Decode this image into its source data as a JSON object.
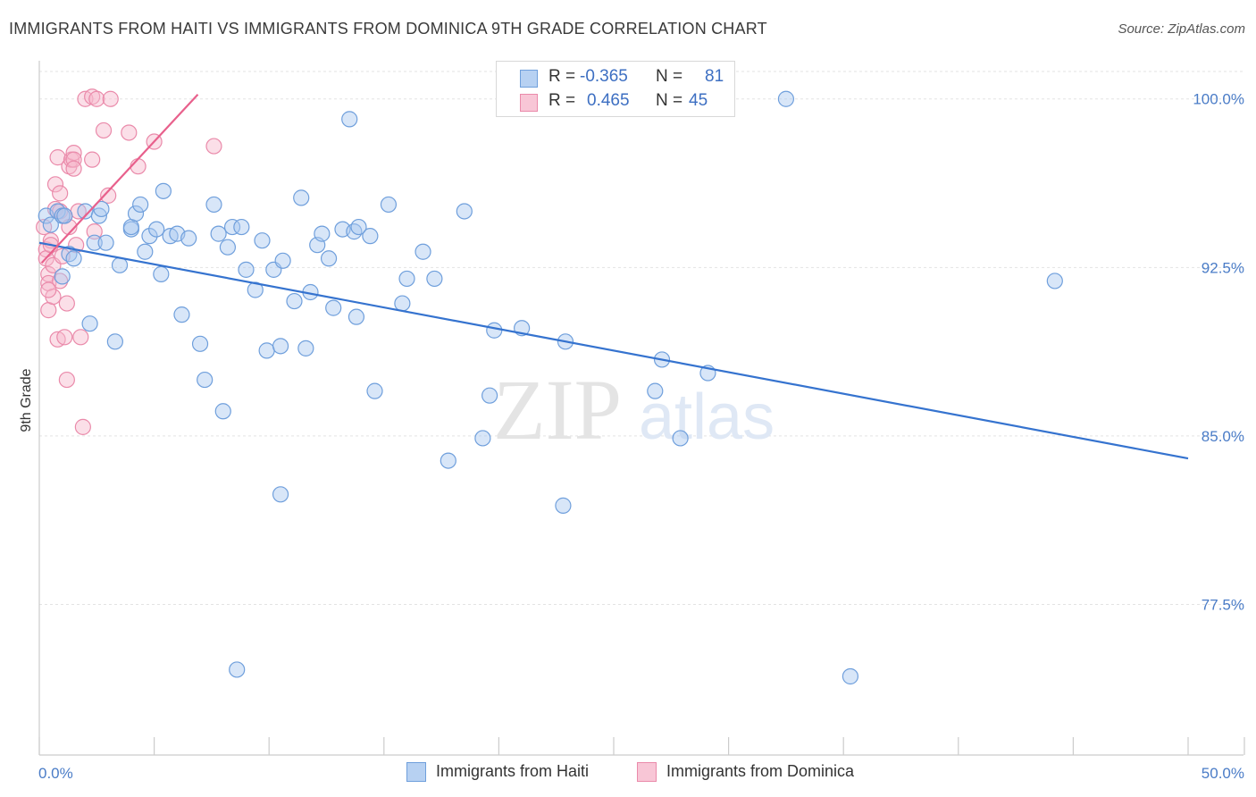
{
  "title": "IMMIGRANTS FROM HAITI VS IMMIGRANTS FROM DOMINICA 9TH GRADE CORRELATION CHART",
  "source": "Source: ZipAtlas.com",
  "watermark": {
    "zip": "ZIP",
    "atlas": "atlas"
  },
  "legend": {
    "rows": [
      {
        "r_label": "R =",
        "r_value": "-0.365",
        "n_label": "N =",
        "n_value": "81"
      },
      {
        "r_label": "R =",
        "r_value": "0.465",
        "n_label": "N =",
        "n_value": "45"
      }
    ]
  },
  "bottom_legend": {
    "haiti": "Immigrants from Haiti",
    "dominica": "Immigrants from Dominica"
  },
  "colors": {
    "haiti_fill": "#a9c8ef",
    "haiti_stroke": "#6f9fdc",
    "haiti_line": "#3573cf",
    "dominica_fill": "#f6b9cc",
    "dominica_stroke": "#ea8aaa",
    "dominica_line": "#e8608c",
    "grid": "#e3e3e3",
    "axis": "#cccccc",
    "tick_text": "#4a7cc7"
  },
  "chart_data": {
    "type": "scatter",
    "title": "IMMIGRANTS FROM HAITI VS IMMIGRANTS FROM DOMINICA 9TH GRADE CORRELATION CHART",
    "xlabel": "",
    "ylabel": "9th Grade",
    "xlim": [
      0,
      50
    ],
    "ylim": [
      70.8,
      101.7
    ],
    "x_tick_labels": [
      {
        "value": 0,
        "label": "0.0%"
      },
      {
        "value": 50,
        "label": "50.0%"
      }
    ],
    "y_ticks": [
      {
        "value": 100.0,
        "label": "100.0%"
      },
      {
        "value": 92.5,
        "label": "92.5%"
      },
      {
        "value": 85.0,
        "label": "85.0%"
      },
      {
        "value": 77.5,
        "label": "77.5%"
      }
    ],
    "series": [
      {
        "name": "Immigrants from Haiti",
        "R": -0.365,
        "N": 81,
        "trend": {
          "x": [
            0,
            50
          ],
          "y": [
            93.6,
            84.0
          ]
        },
        "points": [
          [
            0.3,
            94.8
          ],
          [
            0.5,
            94.4
          ],
          [
            0.8,
            95.0
          ],
          [
            1.0,
            94.8
          ],
          [
            1.1,
            94.8
          ],
          [
            1.0,
            92.1
          ],
          [
            1.3,
            93.1
          ],
          [
            1.5,
            92.9
          ],
          [
            2.0,
            95.0
          ],
          [
            2.6,
            94.8
          ],
          [
            2.7,
            95.1
          ],
          [
            2.2,
            90.0
          ],
          [
            2.4,
            93.6
          ],
          [
            2.9,
            93.6
          ],
          [
            3.3,
            89.2
          ],
          [
            3.5,
            92.6
          ],
          [
            4.0,
            94.2
          ],
          [
            4.0,
            94.3
          ],
          [
            4.2,
            94.9
          ],
          [
            4.4,
            95.3
          ],
          [
            4.6,
            93.2
          ],
          [
            4.8,
            93.9
          ],
          [
            5.1,
            94.2
          ],
          [
            5.3,
            92.2
          ],
          [
            5.4,
            95.9
          ],
          [
            5.7,
            93.9
          ],
          [
            6.0,
            94.0
          ],
          [
            6.2,
            90.4
          ],
          [
            6.5,
            93.8
          ],
          [
            7.0,
            89.1
          ],
          [
            7.2,
            87.5
          ],
          [
            7.6,
            95.3
          ],
          [
            7.8,
            94.0
          ],
          [
            8.0,
            86.1
          ],
          [
            8.2,
            93.4
          ],
          [
            8.4,
            94.3
          ],
          [
            8.8,
            94.3
          ],
          [
            9.0,
            92.4
          ],
          [
            9.4,
            91.5
          ],
          [
            9.7,
            93.7
          ],
          [
            9.9,
            88.8
          ],
          [
            10.2,
            92.4
          ],
          [
            10.6,
            92.8
          ],
          [
            10.5,
            82.4
          ],
          [
            11.1,
            91.0
          ],
          [
            11.4,
            95.6
          ],
          [
            11.6,
            88.9
          ],
          [
            11.8,
            91.4
          ],
          [
            12.1,
            93.5
          ],
          [
            12.3,
            94.0
          ],
          [
            12.6,
            92.9
          ],
          [
            12.8,
            90.7
          ],
          [
            13.2,
            94.2
          ],
          [
            13.7,
            94.1
          ],
          [
            13.5,
            99.1
          ],
          [
            13.8,
            90.3
          ],
          [
            13.9,
            94.3
          ],
          [
            14.4,
            93.9
          ],
          [
            14.6,
            87.0
          ],
          [
            15.2,
            95.3
          ],
          [
            15.8,
            90.9
          ],
          [
            16.0,
            92.0
          ],
          [
            16.7,
            93.2
          ],
          [
            17.2,
            92.0
          ],
          [
            17.8,
            83.9
          ],
          [
            18.5,
            95.0
          ],
          [
            19.3,
            84.9
          ],
          [
            19.6,
            86.8
          ],
          [
            19.8,
            89.7
          ],
          [
            21.0,
            89.8
          ],
          [
            22.8,
            81.9
          ],
          [
            22.9,
            89.2
          ],
          [
            26.8,
            87.0
          ],
          [
            27.1,
            88.4
          ],
          [
            27.9,
            84.9
          ],
          [
            29.1,
            87.8
          ],
          [
            8.6,
            74.6
          ],
          [
            32.5,
            100.0
          ],
          [
            35.3,
            74.3
          ],
          [
            44.2,
            91.9
          ],
          [
            10.5,
            89.0
          ]
        ]
      },
      {
        "name": "Immigrants from Dominica",
        "R": 0.465,
        "N": 45,
        "trend": {
          "x": [
            0.1,
            6.9
          ],
          "y": [
            92.7,
            100.2
          ]
        },
        "points": [
          [
            0.2,
            94.3
          ],
          [
            0.3,
            93.3
          ],
          [
            0.3,
            92.9
          ],
          [
            0.4,
            92.2
          ],
          [
            0.4,
            91.8
          ],
          [
            0.4,
            90.6
          ],
          [
            0.5,
            93.7
          ],
          [
            0.5,
            93.5
          ],
          [
            0.6,
            92.6
          ],
          [
            0.6,
            91.2
          ],
          [
            0.7,
            96.2
          ],
          [
            0.7,
            95.1
          ],
          [
            0.8,
            97.4
          ],
          [
            0.8,
            89.3
          ],
          [
            0.9,
            95.8
          ],
          [
            0.9,
            95.0
          ],
          [
            0.9,
            91.9
          ],
          [
            1.0,
            93.0
          ],
          [
            1.1,
            94.8
          ],
          [
            1.1,
            89.4
          ],
          [
            1.2,
            90.9
          ],
          [
            1.2,
            87.5
          ],
          [
            1.3,
            97.0
          ],
          [
            1.3,
            94.3
          ],
          [
            1.4,
            97.3
          ],
          [
            1.5,
            97.6
          ],
          [
            1.5,
            97.3
          ],
          [
            1.5,
            96.9
          ],
          [
            1.6,
            93.5
          ],
          [
            1.7,
            95.0
          ],
          [
            1.8,
            89.4
          ],
          [
            1.9,
            85.4
          ],
          [
            2.0,
            100.0
          ],
          [
            2.3,
            100.1
          ],
          [
            2.4,
            94.1
          ],
          [
            2.3,
            97.3
          ],
          [
            2.5,
            100.0
          ],
          [
            2.8,
            98.6
          ],
          [
            3.0,
            95.7
          ],
          [
            3.1,
            100.0
          ],
          [
            3.9,
            98.5
          ],
          [
            4.3,
            97.0
          ],
          [
            5.0,
            98.1
          ],
          [
            7.6,
            97.9
          ],
          [
            0.4,
            91.5
          ]
        ]
      }
    ]
  }
}
